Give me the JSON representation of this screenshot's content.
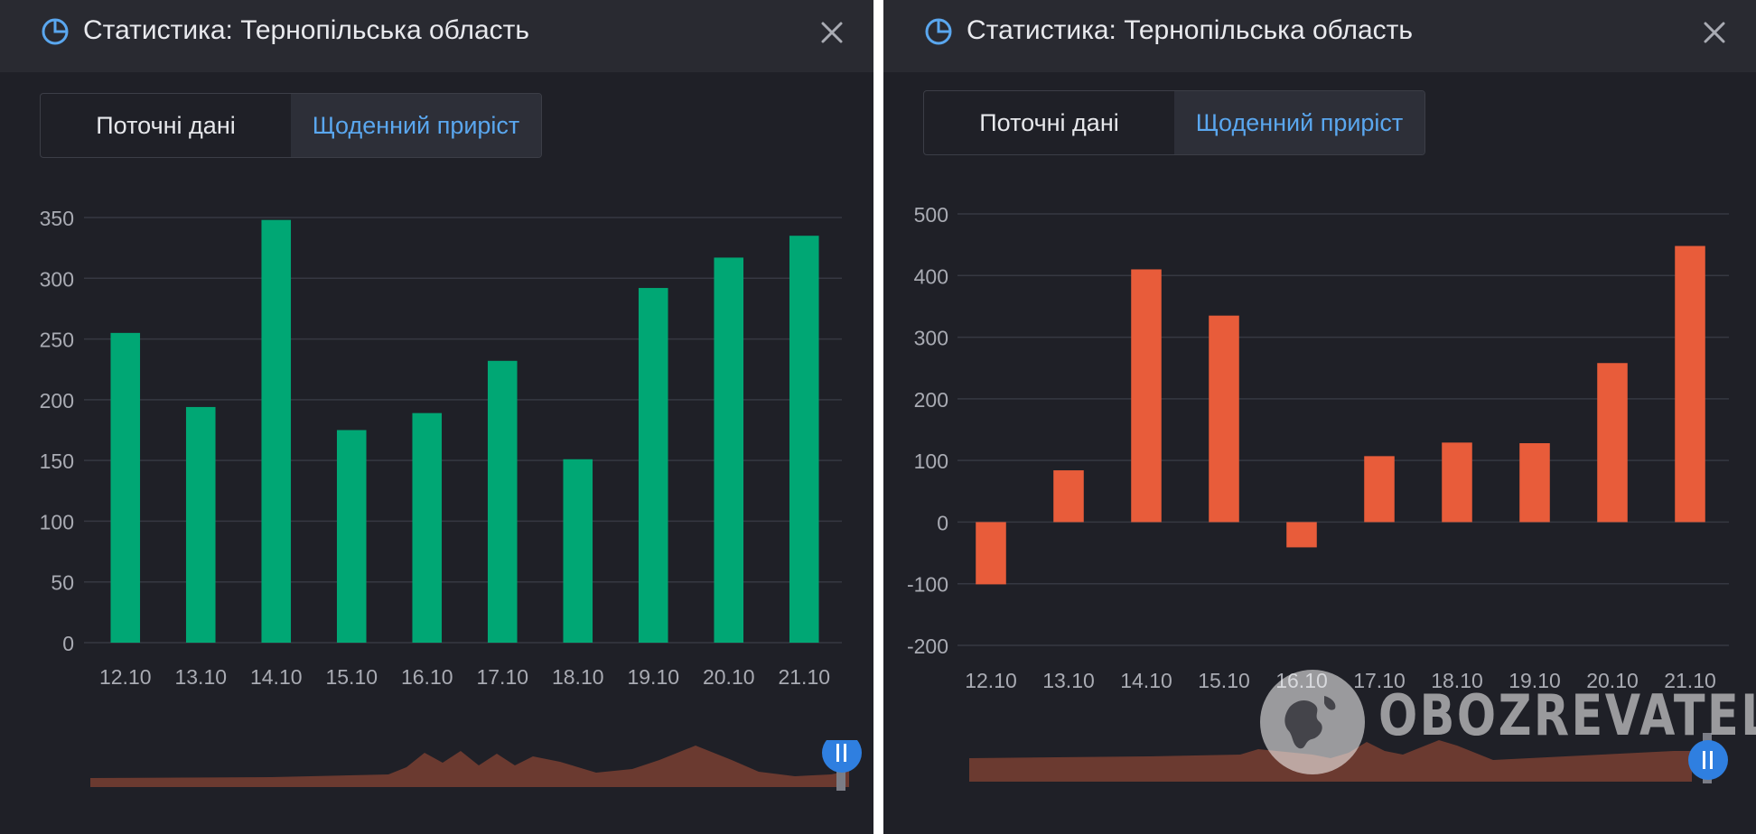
{
  "panels": [
    {
      "title": "Статистика: Тернопільська область",
      "tabs": [
        {
          "label": "Поточні дані",
          "active": false
        },
        {
          "label": "Щоденний приріст",
          "active": true
        }
      ],
      "bar_color": "#00a774"
    },
    {
      "title": "Статистика: Тернопільська область",
      "tabs": [
        {
          "label": "Поточні дані",
          "active": false
        },
        {
          "label": "Щоденний приріст",
          "active": true
        }
      ],
      "bar_color": "#e85c3a"
    }
  ],
  "watermark": {
    "text": "OBOZREVATEL"
  },
  "colors": {
    "panel_bg": "#1f2027",
    "header_bg": "#292a31",
    "accent": "#5aa7ef",
    "grid": "#363842",
    "tick": "#a9abb3"
  },
  "chart_data": [
    {
      "type": "bar",
      "categories": [
        "12.10",
        "13.10",
        "14.10",
        "15.10",
        "16.10",
        "17.10",
        "18.10",
        "19.10",
        "20.10",
        "21.10"
      ],
      "series": [
        {
          "values": [
            255,
            194,
            348,
            175,
            189,
            232,
            151,
            292,
            317,
            335
          ]
        }
      ],
      "ylim": [
        0,
        350
      ],
      "yticks": [
        0,
        50,
        100,
        150,
        200,
        250,
        300,
        350
      ],
      "grid": true,
      "title": "",
      "xlabel": "",
      "ylabel": ""
    },
    {
      "type": "bar",
      "categories": [
        "12.10",
        "13.10",
        "14.10",
        "15.10",
        "16.10",
        "17.10",
        "18.10",
        "19.10",
        "20.10",
        "21.10"
      ],
      "series": [
        {
          "values": [
            -101,
            84,
            410,
            335,
            -41,
            107,
            129,
            128,
            258,
            448
          ]
        }
      ],
      "ylim": [
        -200,
        500
      ],
      "yticks": [
        -200,
        -100,
        0,
        100,
        200,
        300,
        400,
        500
      ],
      "grid": true,
      "title": "",
      "xlabel": "",
      "ylabel": ""
    }
  ]
}
